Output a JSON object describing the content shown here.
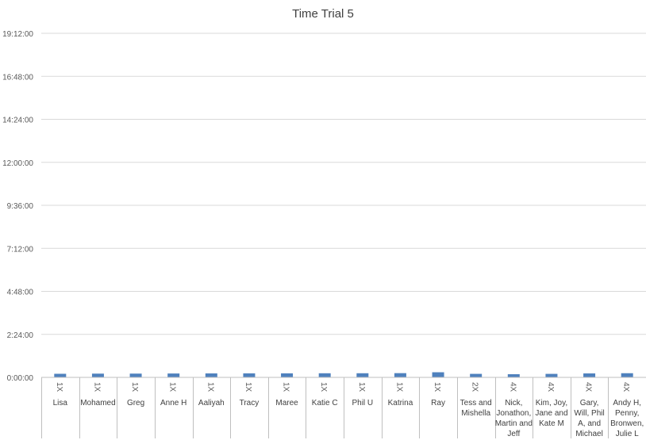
{
  "chart_data": {
    "type": "bar",
    "title": "Time Trial 5",
    "xlabel": "",
    "ylabel": "",
    "ylim": [
      "0:00:00",
      "19:12:00"
    ],
    "yticks": [
      "0:00:00",
      "2:24:00",
      "4:48:00",
      "7:12:00",
      "9:36:00",
      "12:00:00",
      "14:24:00",
      "16:48:00",
      "19:12:00"
    ],
    "grid": true,
    "legend": "none",
    "bar_color": "#4f81bd",
    "categories": [
      {
        "group": "1X",
        "name": "Lisa"
      },
      {
        "group": "1X",
        "name": "Mohamed"
      },
      {
        "group": "1X",
        "name": "Greg"
      },
      {
        "group": "1X",
        "name": "Anne H"
      },
      {
        "group": "1X",
        "name": "Aaliyah"
      },
      {
        "group": "1X",
        "name": "Tracy"
      },
      {
        "group": "1X",
        "name": "Maree"
      },
      {
        "group": "1X",
        "name": "Katie C"
      },
      {
        "group": "1X",
        "name": "Phil U"
      },
      {
        "group": "1X",
        "name": "Katrina"
      },
      {
        "group": "1X",
        "name": "Ray"
      },
      {
        "group": "2X",
        "name": "Tess and Mishella"
      },
      {
        "group": "4X",
        "name": "Nick, Jonathon, Martin and Jeff"
      },
      {
        "group": "4X",
        "name": "Kim, Joy, Jane and Kate M"
      },
      {
        "group": "4X",
        "name": "Gary, Will, Phil A, and Michael"
      },
      {
        "group": "4X",
        "name": "Andy H, Penny, Bronwen, Julie L"
      }
    ],
    "values": [
      "12:00",
      "12:30",
      "12:35",
      "12:58",
      "13:15",
      "13:28",
      "13:30",
      "13:45",
      "13:50",
      "14:09",
      "17:08",
      "11:47",
      "10:33",
      "11:45",
      "13:16",
      "13:56"
    ]
  }
}
